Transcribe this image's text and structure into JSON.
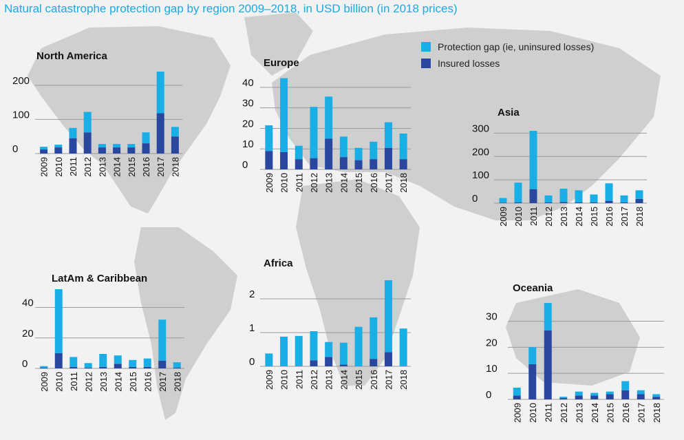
{
  "title": "Natural catastrophe protection gap by region 2009–2018, in USD billion (in 2018 prices)",
  "legend": {
    "gap_label": "Protection gap (ie, uninsured losses)",
    "insured_label": "Insured losses"
  },
  "colors": {
    "gap": "#1aaee6",
    "insured": "#2a47a0",
    "grid": "#9a9a9a",
    "title": "#1fa8e0",
    "map_land": "#cfcfcf"
  },
  "chart_data": [
    {
      "type": "bar",
      "stacked": true,
      "title": "North America",
      "categories": [
        "2009",
        "2010",
        "2011",
        "2012",
        "2013",
        "2014",
        "2015",
        "2016",
        "2017",
        "2018"
      ],
      "series": [
        {
          "name": "Insured losses",
          "values": [
            12,
            18,
            45,
            62,
            18,
            18,
            18,
            30,
            118,
            50
          ]
        },
        {
          "name": "Protection gap (ie, uninsured losses)",
          "values": [
            8,
            8,
            30,
            60,
            10,
            10,
            10,
            32,
            122,
            28
          ]
        }
      ],
      "yticks": [
        0,
        100,
        200
      ],
      "ylim": [
        0,
        240
      ],
      "grid": true
    },
    {
      "type": "bar",
      "stacked": true,
      "title": "Europe",
      "categories": [
        "2009",
        "2010",
        "2011",
        "2012",
        "2013",
        "2014",
        "2015",
        "2016",
        "2017",
        "2018"
      ],
      "series": [
        {
          "name": "Insured losses",
          "values": [
            9,
            8.5,
            5,
            5.5,
            15,
            6,
            4.5,
            5,
            10.5,
            5
          ]
        },
        {
          "name": "Protection gap (ie, uninsured losses)",
          "values": [
            12.5,
            36,
            6.5,
            25,
            20.5,
            10,
            6,
            8.5,
            12.5,
            12.5
          ]
        }
      ],
      "yticks": [
        0,
        10,
        20,
        30,
        40
      ],
      "ylim": [
        0,
        45
      ],
      "grid": true
    },
    {
      "type": "bar",
      "stacked": true,
      "title": "Asia",
      "categories": [
        "2009",
        "2010",
        "2011",
        "2012",
        "2013",
        "2014",
        "2015",
        "2016",
        "2017",
        "2018"
      ],
      "series": [
        {
          "name": "Insured losses",
          "values": [
            2,
            3,
            60,
            3,
            5,
            3,
            3,
            10,
            3,
            18
          ]
        },
        {
          "name": "Protection gap (ie, uninsured losses)",
          "values": [
            20,
            85,
            250,
            30,
            57,
            52,
            34,
            75,
            30,
            37
          ]
        }
      ],
      "yticks": [
        0,
        100,
        200,
        300
      ],
      "ylim": [
        0,
        310
      ],
      "grid": true
    },
    {
      "type": "bar",
      "stacked": true,
      "title": "LatAm & Caribbean",
      "categories": [
        "2009",
        "2010",
        "2011",
        "2012",
        "2013",
        "2014",
        "2015",
        "2016",
        "2017",
        "2018"
      ],
      "series": [
        {
          "name": "Insured losses",
          "values": [
            0.5,
            10,
            1,
            0.5,
            1,
            3,
            1,
            1,
            5,
            0.5
          ]
        },
        {
          "name": "Protection gap (ie, uninsured losses)",
          "values": [
            1,
            42,
            6.5,
            3,
            8.5,
            5.5,
            4.5,
            5.5,
            27,
            3.5
          ]
        }
      ],
      "yticks": [
        0,
        20,
        40
      ],
      "ylim": [
        0,
        52
      ],
      "grid": true
    },
    {
      "type": "bar",
      "stacked": true,
      "title": "Africa",
      "categories": [
        "2009",
        "2010",
        "2011",
        "2012",
        "2013",
        "2014",
        "2015",
        "2016",
        "2017",
        "2018"
      ],
      "series": [
        {
          "name": "Insured losses",
          "values": [
            0,
            0,
            0,
            0.18,
            0.28,
            0.05,
            0,
            0.22,
            0.42,
            0
          ]
        },
        {
          "name": "Protection gap (ie, uninsured losses)",
          "values": [
            0.38,
            0.88,
            0.9,
            0.86,
            0.44,
            0.65,
            1.17,
            1.23,
            2.13,
            1.12
          ]
        }
      ],
      "yticks": [
        0,
        1,
        2
      ],
      "ylim": [
        0,
        2.55
      ],
      "grid": true
    },
    {
      "type": "bar",
      "stacked": true,
      "title": "Oceania",
      "categories": [
        "2009",
        "2010",
        "2011",
        "2012",
        "2013",
        "2014",
        "2015",
        "2016",
        "2017",
        "2018"
      ],
      "series": [
        {
          "name": "Insured losses",
          "values": [
            1.5,
            13.5,
            26.5,
            0.5,
            1.5,
            1.5,
            2,
            3.5,
            2,
            1
          ]
        },
        {
          "name": "Protection gap (ie, uninsured losses)",
          "values": [
            3,
            6.5,
            10.5,
            0.5,
            1.5,
            1,
            1,
            3.5,
            1.5,
            1
          ]
        }
      ],
      "yticks": [
        0,
        10,
        20,
        30
      ],
      "ylim": [
        0,
        37
      ],
      "grid": true
    }
  ]
}
